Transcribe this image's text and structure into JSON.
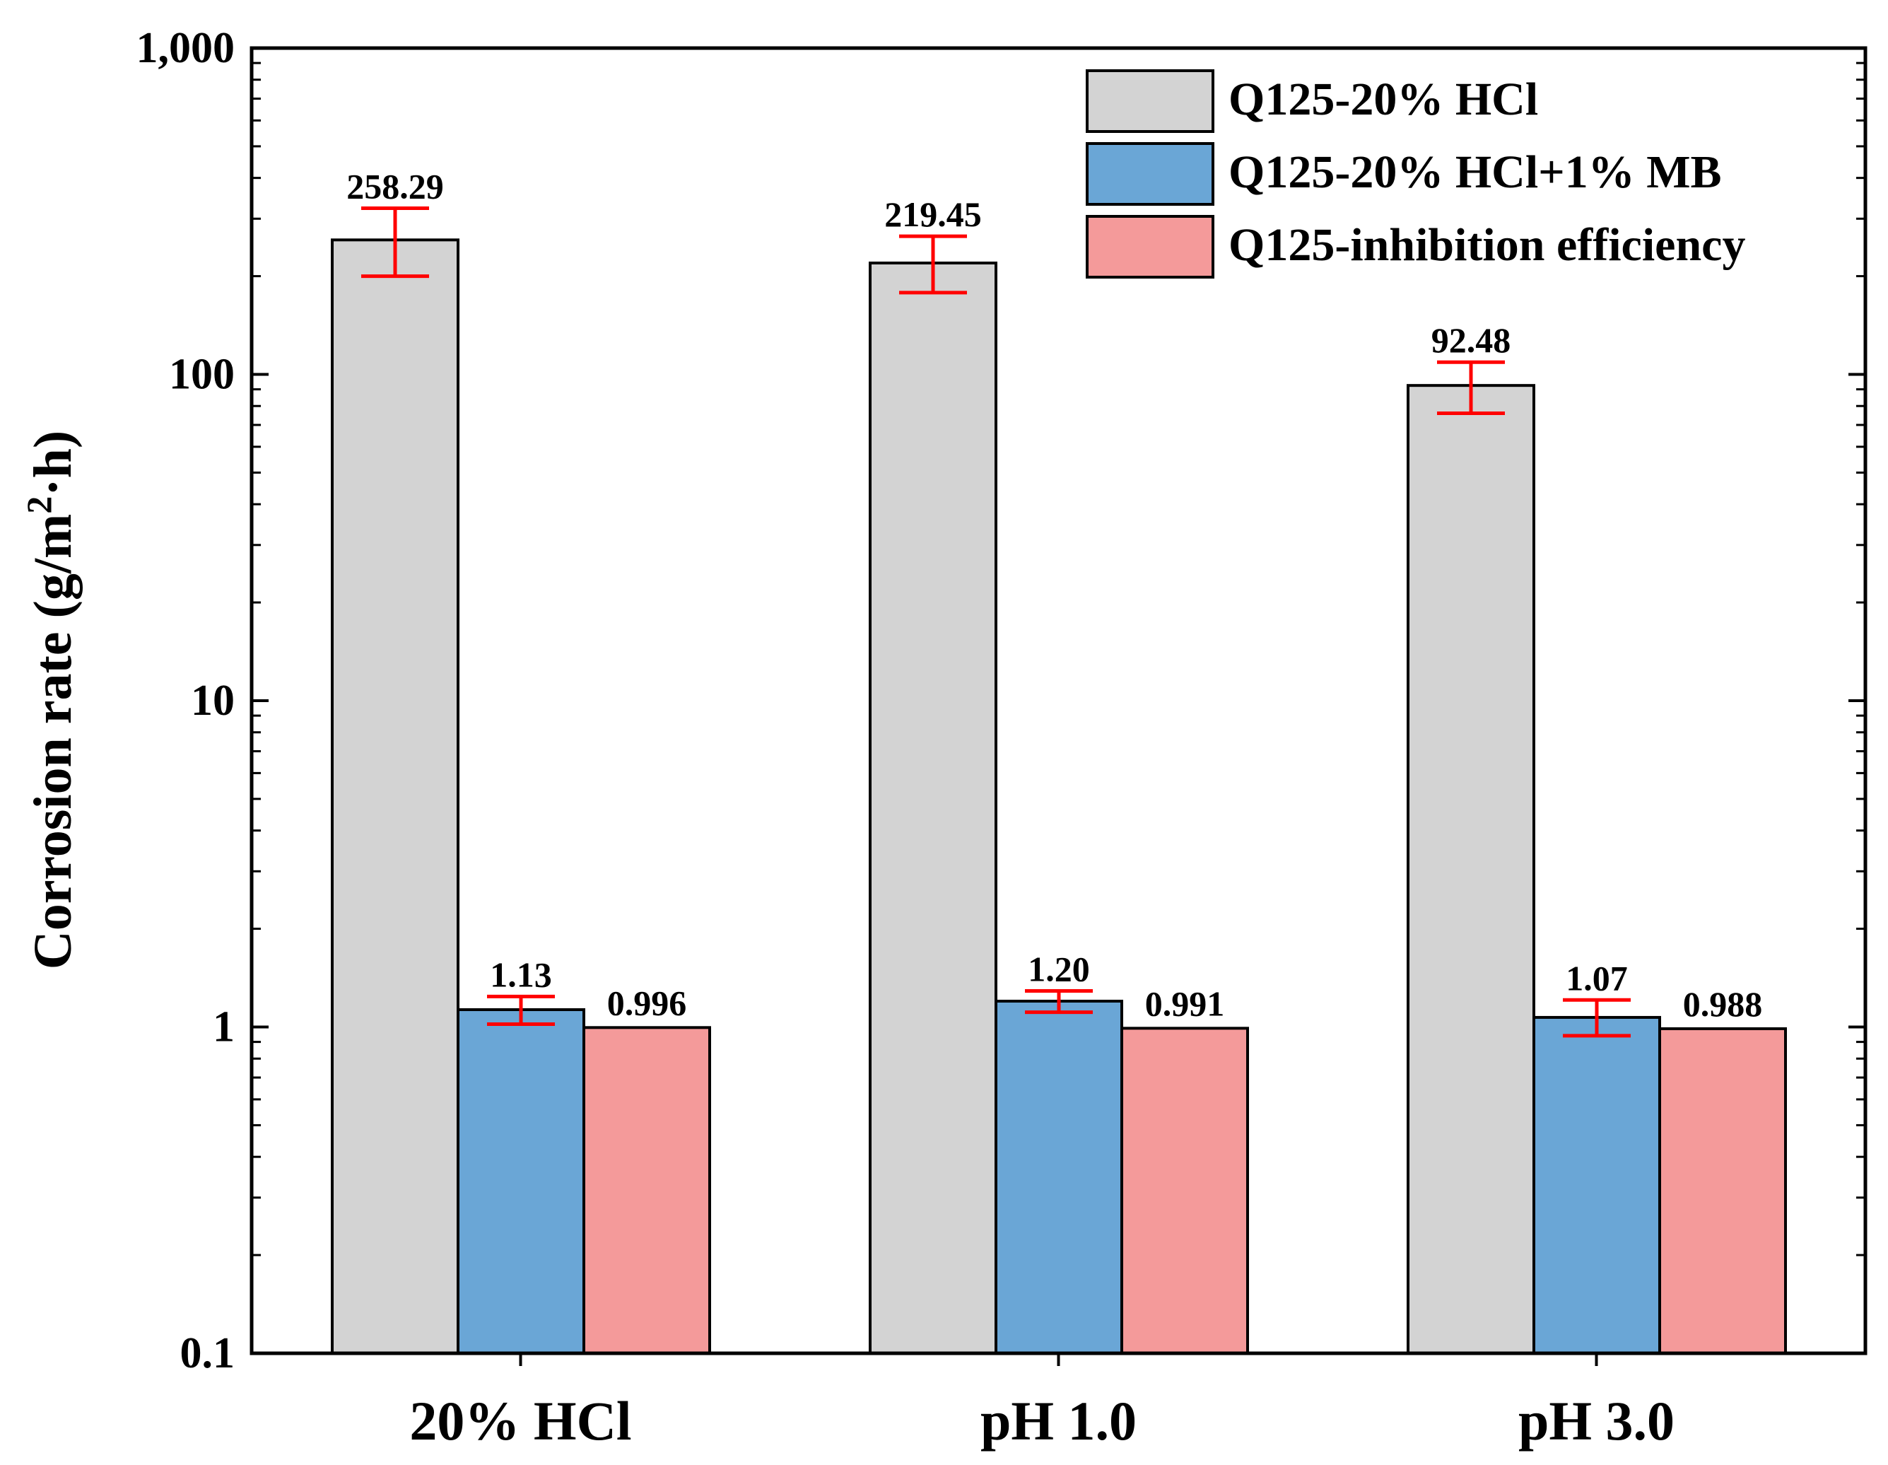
{
  "chart_data": {
    "type": "bar",
    "yscale": "log",
    "ylabel_main": "Corrosion rate (g/m",
    "ylabel_sup": "2",
    "ylabel_tail": "·h)",
    "xlabel": "",
    "ylim": [
      0.1,
      1000
    ],
    "yticks": [
      0.1,
      1,
      10,
      100,
      1000
    ],
    "ytick_labels": [
      "0.1",
      "1",
      "10",
      "100",
      "1,000"
    ],
    "categories": [
      "20% HCl",
      "pH 1.0",
      "pH 3.0"
    ],
    "series": [
      {
        "name": "Q125-20% HCl",
        "color": "#d3d3d3",
        "values": [
          258.29,
          219.45,
          92.48
        ],
        "labels": [
          "258.29",
          "219.45",
          "92.48"
        ],
        "error_low": [
          200,
          178,
          76
        ],
        "error_high": [
          323,
          265,
          109
        ]
      },
      {
        "name": "Q125-20% HCl+1% MB",
        "color": "#6aa6d6",
        "values": [
          1.13,
          1.2,
          1.07
        ],
        "labels": [
          "1.13",
          "1.20",
          "1.07"
        ],
        "error_low": [
          1.02,
          1.11,
          0.94
        ],
        "error_high": [
          1.24,
          1.29,
          1.21
        ]
      },
      {
        "name": "Q125-inhibition efficiency",
        "color": "#f49a9a",
        "values": [
          0.996,
          0.991,
          0.988
        ],
        "labels": [
          "0.996",
          "0.991",
          "0.988"
        ]
      }
    ],
    "error_bar_color": "#ff0000",
    "legend_position": "top-right"
  }
}
